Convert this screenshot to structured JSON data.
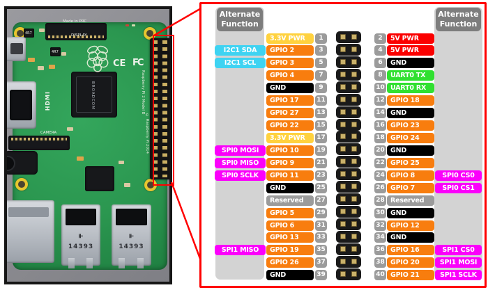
{
  "panel": {
    "alt_header_left": "Alternate Function",
    "alt_header_right": "Alternate Function"
  },
  "type_colors": {
    "3v3": "#ffd23f",
    "gpio": "#f87d0e",
    "gnd": "#000000",
    "reserved": "#9b9b9b",
    "5v": "#fb0000",
    "uart": "#30e030",
    "i2c": "#3ed3f2",
    "spi": "#fb00fb"
  },
  "pin_badge_color": "#9b9b9b",
  "callout_color": "#ff0000",
  "pins_left": [
    {
      "pin": "1",
      "label": "3.3V PWR",
      "type": "3v3"
    },
    {
      "pin": "3",
      "label": "GPIO 2",
      "type": "gpio",
      "alt": "I2C1 SDA",
      "alt_type": "i2c"
    },
    {
      "pin": "5",
      "label": "GPIO 3",
      "type": "gpio",
      "alt": "I2C1 SCL",
      "alt_type": "i2c"
    },
    {
      "pin": "7",
      "label": "GPIO 4",
      "type": "gpio"
    },
    {
      "pin": "9",
      "label": "GND",
      "type": "gnd"
    },
    {
      "pin": "11",
      "label": "GPIO 17",
      "type": "gpio"
    },
    {
      "pin": "13",
      "label": "GPIO 27",
      "type": "gpio"
    },
    {
      "pin": "15",
      "label": "GPIO 22",
      "type": "gpio"
    },
    {
      "pin": "17",
      "label": "3.3V PWR",
      "type": "3v3"
    },
    {
      "pin": "19",
      "label": "GPIO 10",
      "type": "gpio",
      "alt": "SPI0 MOSI",
      "alt_type": "spi"
    },
    {
      "pin": "21",
      "label": "GPIO 9",
      "type": "gpio",
      "alt": "SPI0 MISO",
      "alt_type": "spi"
    },
    {
      "pin": "23",
      "label": "GPIO 11",
      "type": "gpio",
      "alt": "SPI0 SCLK",
      "alt_type": "spi"
    },
    {
      "pin": "25",
      "label": "GND",
      "type": "gnd"
    },
    {
      "pin": "27",
      "label": "Reserved",
      "type": "reserved"
    },
    {
      "pin": "29",
      "label": "GPIO 5",
      "type": "gpio"
    },
    {
      "pin": "31",
      "label": "GPIO 6",
      "type": "gpio"
    },
    {
      "pin": "33",
      "label": "GPIO 13",
      "type": "gpio"
    },
    {
      "pin": "35",
      "label": "GPIO 19",
      "type": "gpio",
      "alt": "SPI1 MISO",
      "alt_type": "spi"
    },
    {
      "pin": "37",
      "label": "GPIO 26",
      "type": "gpio"
    },
    {
      "pin": "39",
      "label": "GND",
      "type": "gnd"
    }
  ],
  "pins_right": [
    {
      "pin": "2",
      "label": "5V PWR",
      "type": "5v"
    },
    {
      "pin": "4",
      "label": "5V PWR",
      "type": "5v"
    },
    {
      "pin": "6",
      "label": "GND",
      "type": "gnd"
    },
    {
      "pin": "8",
      "label": "UART0 TX",
      "type": "uart"
    },
    {
      "pin": "10",
      "label": "UART0 RX",
      "type": "uart"
    },
    {
      "pin": "12",
      "label": "GPIO 18",
      "type": "gpio"
    },
    {
      "pin": "14",
      "label": "GND",
      "type": "gnd"
    },
    {
      "pin": "16",
      "label": "GPIO 23",
      "type": "gpio"
    },
    {
      "pin": "18",
      "label": "GPIO 24",
      "type": "gpio"
    },
    {
      "pin": "20",
      "label": "GND",
      "type": "gnd"
    },
    {
      "pin": "22",
      "label": "GPIO 25",
      "type": "gpio"
    },
    {
      "pin": "24",
      "label": "GPIO 8",
      "type": "gpio",
      "alt": "SPI0 CS0",
      "alt_type": "spi"
    },
    {
      "pin": "26",
      "label": "GPIO 7",
      "type": "gpio",
      "alt": "SPI0 CS1",
      "alt_type": "spi"
    },
    {
      "pin": "28",
      "label": "Reserved",
      "type": "reserved"
    },
    {
      "pin": "30",
      "label": "GND",
      "type": "gnd"
    },
    {
      "pin": "32",
      "label": "GPIO 12",
      "type": "gpio"
    },
    {
      "pin": "34",
      "label": "GND",
      "type": "gnd"
    },
    {
      "pin": "36",
      "label": "GPIO 16",
      "type": "gpio",
      "alt": "SPI1 CS0",
      "alt_type": "spi"
    },
    {
      "pin": "38",
      "label": "GPIO 20",
      "type": "gpio",
      "alt": "SPI1 MOSI",
      "alt_type": "spi"
    },
    {
      "pin": "40",
      "label": "GPIO 21",
      "type": "gpio",
      "alt": "SPI1 SCLK",
      "alt_type": "spi"
    }
  ],
  "photo": {
    "made_in": "Made in PRC",
    "display_label": "DISPLAY",
    "camera_label": "CAMERA",
    "hdmi_label": "HDMI",
    "chip_label": "BROADCOM",
    "ce_mark": "CE",
    "fcc_mark": "FC",
    "inductor_label": "4R7",
    "usb_port_label": "14393",
    "board_text": "Raspberry Pi 2 Model B",
    "copyright_text": "© Raspberry Pi 2014"
  }
}
